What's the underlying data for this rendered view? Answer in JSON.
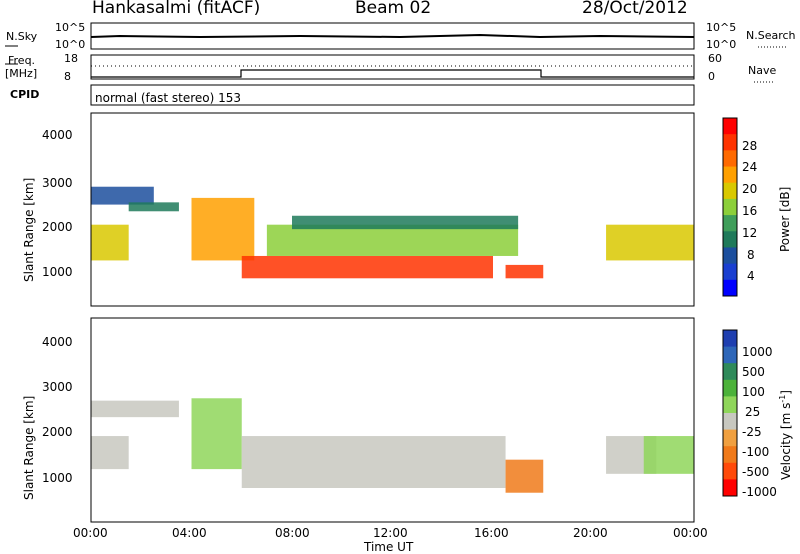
{
  "header": {
    "station": "Hankasalmi (fitACF)",
    "beam": "Beam 02",
    "date": "28/Oct/2012"
  },
  "panels": {
    "nsky": {
      "label": "N.Sky",
      "y_ticks": [
        "10^5",
        "10^0"
      ],
      "right_label": "N.Search",
      "right_ticks": [
        "10^5",
        "10^0"
      ]
    },
    "freq": {
      "label_line1": "Freq.",
      "label_line2": "[MHz]",
      "y_ticks": [
        "18",
        "8"
      ],
      "right_label": "Nave",
      "right_ticks": [
        "60",
        "0"
      ]
    },
    "cpid": {
      "label": "CPID",
      "mode_text": "normal (fast stereo) 153"
    }
  },
  "power_panel": {
    "ylabel": "Slant Range [km]",
    "y_ticks": [
      "4000",
      "3000",
      "2000",
      "1000"
    ],
    "colorbar_label": "Power [dB]",
    "colorbar_ticks": [
      "28",
      "24",
      "20",
      "16",
      "12",
      "8",
      "4"
    ],
    "colors": [
      "#ff0000",
      "#ff3300",
      "#ff6a00",
      "#ffa000",
      "#d9c800",
      "#8ccf3a",
      "#3f9e5a",
      "#1f7a5a",
      "#1c4f9e",
      "#1a3fd0",
      "#0000ff"
    ]
  },
  "velocity_panel": {
    "ylabel": "Slant Range [km]",
    "y_ticks": [
      "4000",
      "3000",
      "2000",
      "1000"
    ],
    "colorbar_label": "Velocity [m s",
    "colorbar_label_sup": "-1",
    "colorbar_label_end": "]",
    "colorbar_ticks": [
      "1000",
      "500",
      "100",
      "25",
      "-25",
      "-100",
      "-500",
      "-1000"
    ],
    "colors": [
      "#1f3fb0",
      "#2e66b8",
      "#2f8a5a",
      "#4cb23a",
      "#8fd65a",
      "#c8c8c0",
      "#f0a040",
      "#f07a1a",
      "#ff4a0a",
      "#ff0000"
    ]
  },
  "x_axis": {
    "label": "Time UT",
    "ticks": [
      "00:00",
      "04:00",
      "08:00",
      "12:00",
      "16:00",
      "20:00",
      "00:00"
    ]
  },
  "chart_data": [
    {
      "type": "heatmap",
      "title": "Power",
      "xlabel": "Time UT",
      "ylabel": "Slant Range [km]",
      "xlim": [
        0,
        24
      ],
      "ylim": [
        180,
        4500
      ],
      "value_label": "Power [dB]",
      "value_range": [
        0,
        30
      ],
      "blobs": [
        {
          "t0": 0.0,
          "t1": 2.5,
          "r0": 2450,
          "r1": 2850,
          "value": 6
        },
        {
          "t0": 0.0,
          "t1": 1.5,
          "r0": 1200,
          "r1": 2000,
          "value": 18
        },
        {
          "t0": 1.5,
          "t1": 3.5,
          "r0": 2300,
          "r1": 2500,
          "value": 8
        },
        {
          "t0": 4.0,
          "t1": 6.5,
          "r0": 1200,
          "r1": 2600,
          "value": 20
        },
        {
          "t0": 6.0,
          "t1": 16.0,
          "r0": 800,
          "r1": 1300,
          "value": 26
        },
        {
          "t0": 7.0,
          "t1": 17.0,
          "r0": 1300,
          "r1": 2000,
          "value": 16
        },
        {
          "t0": 8.0,
          "t1": 17.0,
          "r0": 1900,
          "r1": 2200,
          "value": 8
        },
        {
          "t0": 16.5,
          "t1": 18.0,
          "r0": 800,
          "r1": 1100,
          "value": 28
        },
        {
          "t0": 20.5,
          "t1": 24.0,
          "r0": 1200,
          "r1": 2000,
          "value": 18
        }
      ]
    },
    {
      "type": "heatmap",
      "title": "Velocity",
      "xlabel": "Time UT",
      "ylabel": "Slant Range [km]",
      "xlim": [
        0,
        24
      ],
      "ylim": [
        180,
        4500
      ],
      "value_label": "Velocity [m s-1]",
      "value_range": [
        -1000,
        1000
      ],
      "blobs": [
        {
          "t0": 0.0,
          "t1": 3.5,
          "r0": 2400,
          "r1": 2750,
          "value": 0
        },
        {
          "t0": 0.0,
          "t1": 1.5,
          "r0": 1300,
          "r1": 2000,
          "value": -100
        },
        {
          "t0": 4.0,
          "t1": 6.0,
          "r0": 1300,
          "r1": 2800,
          "value": 100
        },
        {
          "t0": 6.0,
          "t1": 16.5,
          "r0": 900,
          "r1": 2000,
          "value": 0
        },
        {
          "t0": 16.5,
          "t1": 18.0,
          "r0": 800,
          "r1": 1500,
          "value": -500
        },
        {
          "t0": 20.5,
          "t1": 22.5,
          "r0": 1200,
          "r1": 2000,
          "value": -100
        },
        {
          "t0": 22.0,
          "t1": 24.0,
          "r0": 1200,
          "r1": 2000,
          "value": 100
        }
      ]
    }
  ]
}
